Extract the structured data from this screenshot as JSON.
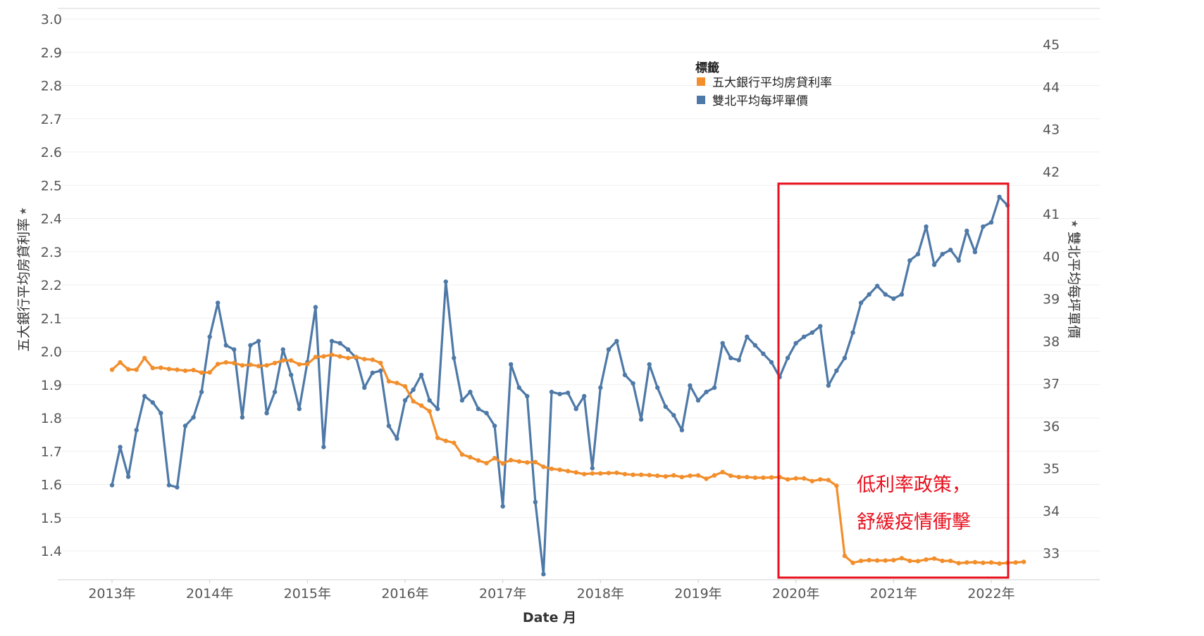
{
  "chart_data": {
    "type": "line",
    "xlabel": "Date 月",
    "x_ticks": [
      "2013年",
      "2014年",
      "2015年",
      "2016年",
      "2017年",
      "2018年",
      "2019年",
      "2020年",
      "2021年",
      "2022年"
    ],
    "y_left": {
      "label": "五大銀行平均房貸利率",
      "range": [
        1.31,
        3.0
      ],
      "ticks": [
        "3.0",
        "2.9",
        "2.8",
        "2.7",
        "2.6",
        "2.5",
        "2.4",
        "2.3",
        "2.2",
        "2.1",
        "2.0",
        "1.9",
        "1.8",
        "1.7",
        "1.6",
        "1.5",
        "1.4"
      ]
    },
    "y_right": {
      "label": "雙北平均每坪單價",
      "range": [
        32.3,
        45.5
      ],
      "ticks": [
        "45",
        "44",
        "43",
        "42",
        "41",
        "40",
        "39",
        "38",
        "37",
        "36",
        "35",
        "34",
        "33"
      ]
    },
    "legend": {
      "title": "標籤",
      "position": "top-center",
      "items": [
        {
          "label": "五大銀行平均房貸利率",
          "color": "#f28e2b"
        },
        {
          "label": "雙北平均每坪單價",
          "color": "#4e79a7"
        }
      ]
    },
    "grid": true,
    "x_start": "2013-01",
    "series": [
      {
        "name": "五大銀行平均房貸利率",
        "axis": "left",
        "color": "#f28e2b",
        "values": [
          1.945,
          1.967,
          1.946,
          1.945,
          1.98,
          1.95,
          1.951,
          1.947,
          1.945,
          1.942,
          1.944,
          1.936,
          1.937,
          1.962,
          1.967,
          1.965,
          1.958,
          1.96,
          1.956,
          1.958,
          1.965,
          1.973,
          1.973,
          1.961,
          1.962,
          1.983,
          1.985,
          1.99,
          1.985,
          1.98,
          1.983,
          1.977,
          1.975,
          1.965,
          1.91,
          1.905,
          1.895,
          1.85,
          1.837,
          1.82,
          1.74,
          1.731,
          1.725,
          1.69,
          1.682,
          1.672,
          1.664,
          1.679,
          1.663,
          1.673,
          1.669,
          1.666,
          1.667,
          1.653,
          1.647,
          1.644,
          1.64,
          1.636,
          1.631,
          1.633,
          1.633,
          1.634,
          1.635,
          1.631,
          1.629,
          1.629,
          1.628,
          1.626,
          1.624,
          1.627,
          1.622,
          1.626,
          1.627,
          1.617,
          1.627,
          1.637,
          1.626,
          1.622,
          1.622,
          1.62,
          1.62,
          1.621,
          1.622,
          1.615,
          1.618,
          1.618,
          1.61,
          1.615,
          1.613,
          1.596,
          1.385,
          1.364,
          1.37,
          1.372,
          1.371,
          1.371,
          1.372,
          1.378,
          1.37,
          1.369,
          1.374,
          1.377,
          1.37,
          1.37,
          1.363,
          1.365,
          1.366,
          1.364,
          1.365,
          1.362,
          1.364,
          1.365,
          1.367
        ]
      },
      {
        "name": "雙北平均每坪單價",
        "axis": "right",
        "color": "#4e79a7",
        "values": [
          34.6,
          35.5,
          34.8,
          35.9,
          36.7,
          36.55,
          36.3,
          34.6,
          34.55,
          36.0,
          36.2,
          36.8,
          38.1,
          38.9,
          37.9,
          37.8,
          36.2,
          37.9,
          38.0,
          36.3,
          36.8,
          37.8,
          37.2,
          36.4,
          37.5,
          38.8,
          35.5,
          38.0,
          37.95,
          37.8,
          37.6,
          36.9,
          37.25,
          37.3,
          36.0,
          35.7,
          36.6,
          36.85,
          37.2,
          36.6,
          36.4,
          39.4,
          37.6,
          36.6,
          36.8,
          36.4,
          36.3,
          36.0,
          34.1,
          37.45,
          36.9,
          36.7,
          34.2,
          32.5,
          36.8,
          36.75,
          36.78,
          36.4,
          36.7,
          35.0,
          36.9,
          37.8,
          38.0,
          37.2,
          37.0,
          36.15,
          37.45,
          36.9,
          36.45,
          36.25,
          35.9,
          36.95,
          36.6,
          36.8,
          36.9,
          37.95,
          37.6,
          37.55,
          38.1,
          37.9,
          37.7,
          37.5,
          37.15,
          37.6,
          37.95,
          38.1,
          38.2,
          38.35,
          36.95,
          37.3,
          37.6,
          38.2,
          38.9,
          39.1,
          39.3,
          39.1,
          39.0,
          39.1,
          39.9,
          40.05,
          40.7,
          39.8,
          40.05,
          40.15,
          39.9,
          40.6,
          40.1,
          40.7,
          40.8,
          41.4,
          41.2
        ]
      }
    ],
    "annotation": {
      "lines": [
        "低利率政策，",
        "舒緩疫情衝擊"
      ],
      "color": "#e8101e"
    }
  }
}
